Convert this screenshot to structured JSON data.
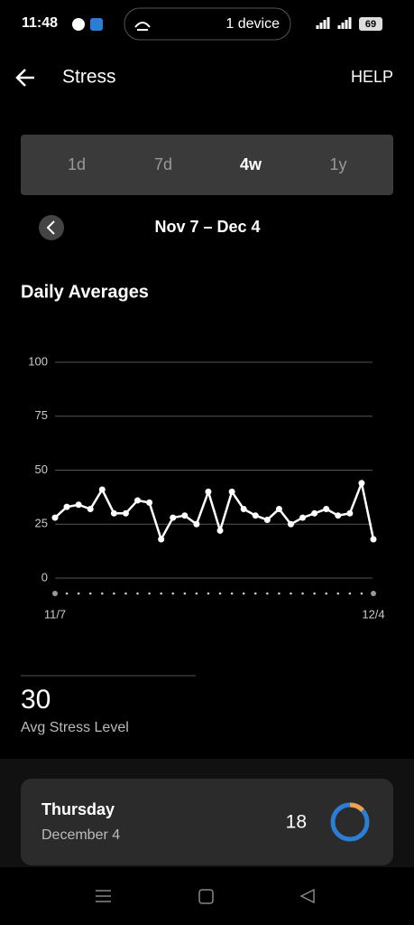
{
  "status_bar": {
    "time": "11:48",
    "hotspot": "1 device",
    "battery": "69"
  },
  "header": {
    "title": "Stress",
    "help": "HELP"
  },
  "tabs": {
    "items": [
      "1d",
      "7d",
      "4w",
      "1y"
    ],
    "selected": 2
  },
  "range": "Nov 7 – Dec 4",
  "section_title": "Daily Averages",
  "chart_data": {
    "type": "line",
    "categories": [
      "11/7",
      null,
      null,
      null,
      null,
      null,
      null,
      null,
      null,
      null,
      null,
      null,
      null,
      null,
      null,
      null,
      null,
      null,
      null,
      null,
      null,
      null,
      null,
      null,
      null,
      null,
      null,
      "12/4"
    ],
    "values": [
      28,
      33,
      34,
      32,
      41,
      30,
      30,
      36,
      35,
      18,
      28,
      29,
      25,
      40,
      22,
      40,
      32,
      29,
      27,
      32,
      25,
      28,
      30,
      32,
      29,
      30,
      44,
      18
    ],
    "color": "#ffffff",
    "ylim": [
      0,
      100
    ],
    "yticks": [
      0,
      25,
      50,
      75,
      100
    ],
    "grid": true
  },
  "summary": {
    "value": "30",
    "label": "Avg Stress Level"
  },
  "day_card": {
    "day": "Thursday",
    "date": "December 4",
    "value": "18"
  }
}
